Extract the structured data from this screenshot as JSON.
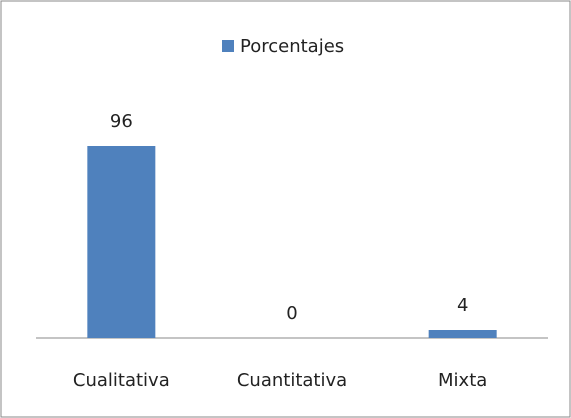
{
  "chart_data": {
    "type": "bar",
    "categories": [
      "Cualitativa",
      "Cuantitativa",
      "Mixta"
    ],
    "series": [
      {
        "name": "Porcentajes",
        "color": "#4f81bd",
        "values": [
          96,
          0,
          4
        ]
      }
    ],
    "ylim": [
      0,
      100
    ],
    "legend": "top"
  }
}
